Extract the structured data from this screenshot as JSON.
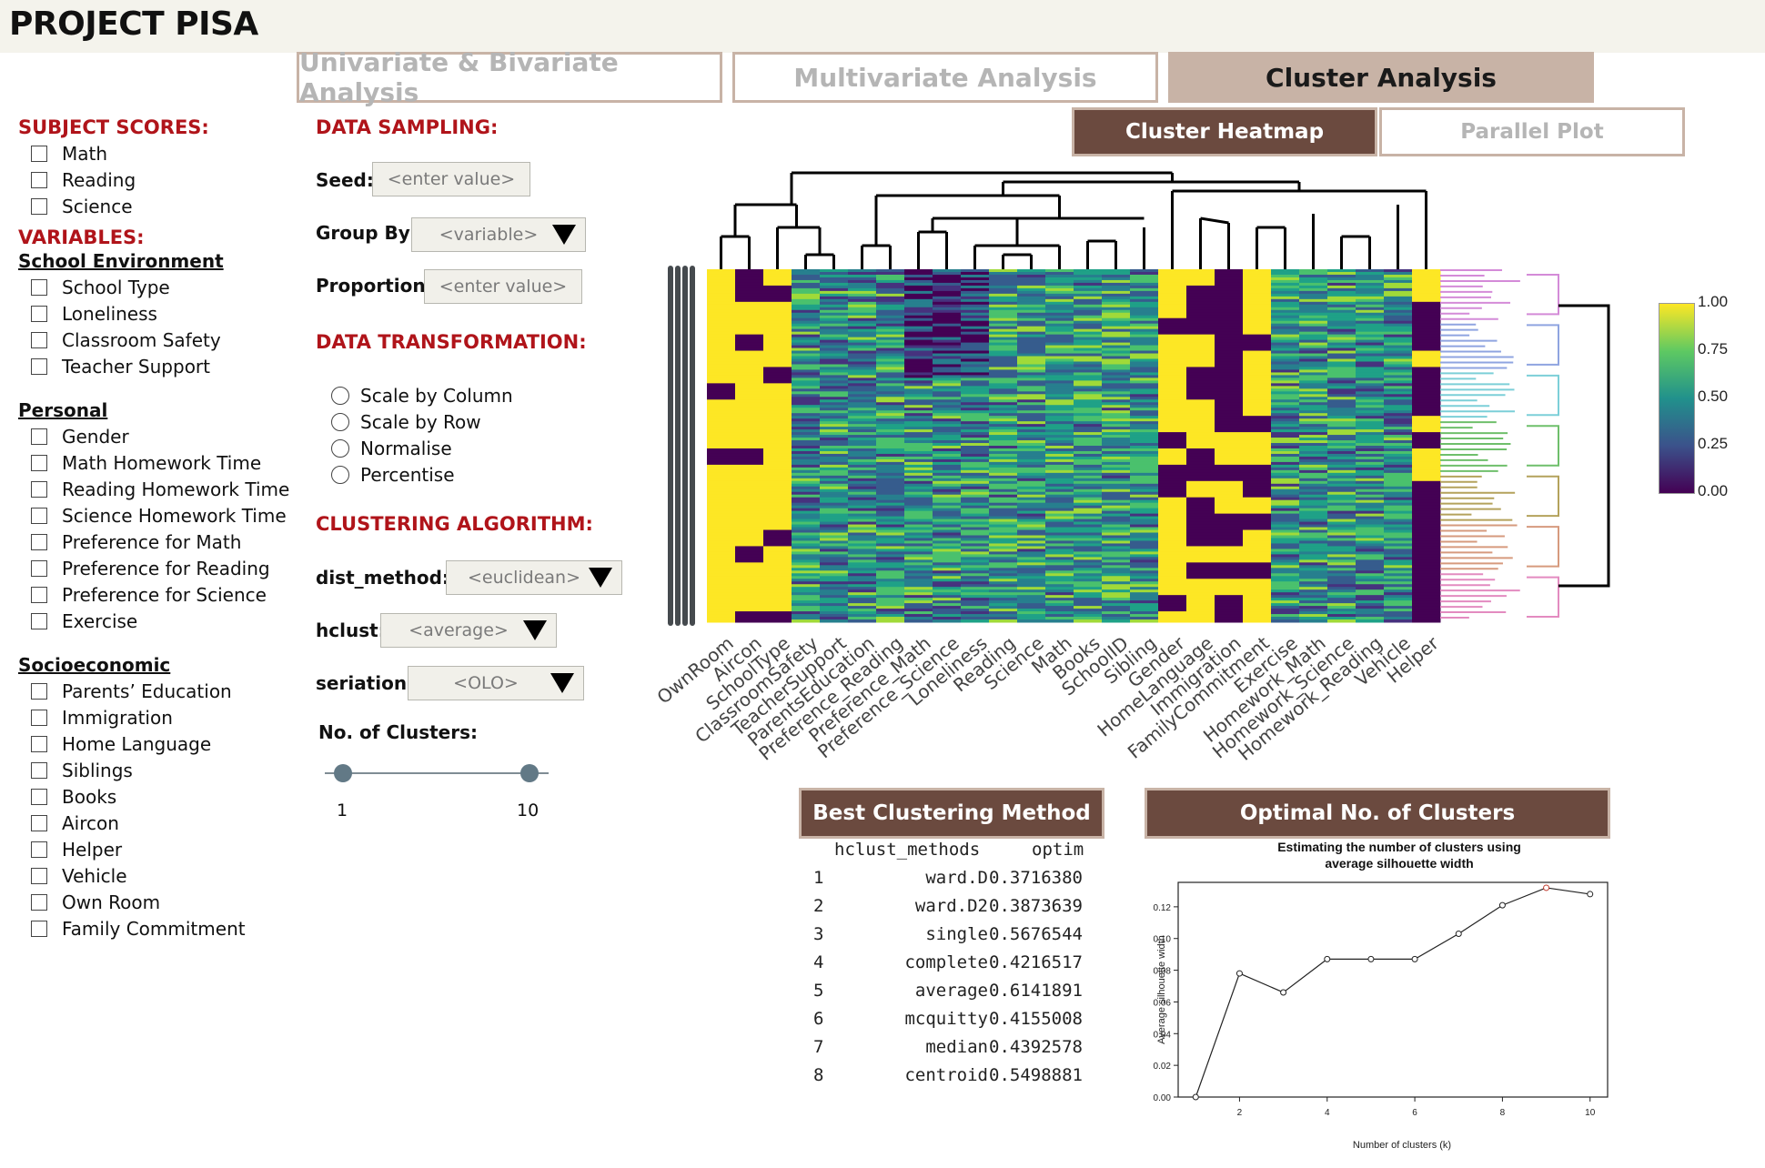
{
  "app": {
    "title": "PROJECT PISA"
  },
  "main_tabs": [
    {
      "label": "Univariate & Bivariate Analysis",
      "active": false
    },
    {
      "label": "Multivariate Analysis",
      "active": false
    },
    {
      "label": "Cluster Analysis",
      "active": true
    }
  ],
  "sub_tabs": [
    {
      "label": "Cluster Heatmap",
      "active": true
    },
    {
      "label": "Parallel Plot",
      "active": false
    }
  ],
  "sidebar": {
    "subject_scores_title": "SUBJECT SCORES:",
    "subject_scores": [
      "Math",
      "Reading",
      "Science"
    ],
    "variables_title": "VARIABLES:",
    "school_env_title": "School Environment",
    "school_env": [
      "School Type",
      "Loneliness",
      "Classroom Safety",
      "Teacher Support"
    ],
    "personal_title": "Personal",
    "personal": [
      "Gender",
      "Math Homework Time",
      "Reading Homework Time",
      "Science Homework Time",
      "Preference for Math",
      "Preference for Reading",
      "Preference for Science",
      "Exercise"
    ],
    "socio_title": "Socioeconomic",
    "socio": [
      "Parents’ Education",
      "Immigration",
      "Home Language",
      "Siblings",
      "Books",
      "Aircon",
      "Helper",
      "Vehicle",
      "Own Room",
      "Family Commitment"
    ]
  },
  "controls": {
    "sampling_title": "DATA SAMPLING:",
    "seed_label": "Seed:",
    "seed_placeholder": "<enter value>",
    "group_by_label": "Group By:",
    "group_by_value": "<variable>",
    "proportion_label": "Proportion:",
    "proportion_placeholder": "<enter value>",
    "transform_title": "DATA TRANSFORMATION:",
    "transform_options": [
      "Scale by Column",
      "Scale by Row",
      "Normalise",
      "Percentise"
    ],
    "clustering_title": "CLUSTERING ALGORITHM:",
    "dist_label": "dist_method:",
    "dist_value": "<euclidean>",
    "hclust_label": "hclust:",
    "hclust_value": "<average>",
    "seriation_label": "seriation:",
    "seriation_value": "<OLO>",
    "clusters_label": "No. of Clusters:",
    "clusters_min": "1",
    "clusters_max": "10"
  },
  "heatmap": {
    "columns": [
      "OwnRoom",
      "Aircon",
      "SchoolType",
      "ClassroomSafety",
      "TeacherSupport",
      "ParentsEducation",
      "Preference_Reading",
      "Preference_Math",
      "Preference_Science",
      "Loneliness",
      "Reading",
      "Science",
      "Math",
      "Books",
      "SchoolID",
      "Sibling",
      "Gender",
      "HomeLanguage",
      "Immigration",
      "FamilyCommitment",
      "Exercise",
      "Homework_Math",
      "Homework_Science",
      "Homework_Reading",
      "Vehicle",
      "Helper"
    ],
    "legend_ticks": [
      "1.00",
      "0.75",
      "0.50",
      "0.25",
      "0.00"
    ],
    "colors": {
      "low": "#440154",
      "mid": "#21918c",
      "high": "#fde725"
    }
  },
  "best_method": {
    "title": "Best Clustering Method",
    "header": [
      "hclust_methods",
      "optim"
    ],
    "rows": [
      {
        "idx": "1",
        "method": "ward.D",
        "optim": "0.3716380"
      },
      {
        "idx": "2",
        "method": "ward.D2",
        "optim": "0.3873639"
      },
      {
        "idx": "3",
        "method": "single",
        "optim": "0.5676544"
      },
      {
        "idx": "4",
        "method": "complete",
        "optim": "0.4216517"
      },
      {
        "idx": "5",
        "method": "average",
        "optim": "0.6141891"
      },
      {
        "idx": "6",
        "method": "mcquitty",
        "optim": "0.4155008"
      },
      {
        "idx": "7",
        "method": "median",
        "optim": "0.4392578"
      },
      {
        "idx": "8",
        "method": "centroid",
        "optim": "0.5498881"
      }
    ]
  },
  "optimal_clusters": {
    "panel_title": "Optimal No. of Clusters"
  },
  "chart_data": {
    "type": "line",
    "title": "Estimating the number of clusters using\naverage silhouette width",
    "title_lines": [
      "Estimating the number of clusters using",
      "average silhouette width"
    ],
    "xlabel": "Number of clusters (k)",
    "ylabel": "Average silhouette width",
    "x": [
      1,
      2,
      3,
      4,
      5,
      6,
      7,
      8,
      9,
      10
    ],
    "values": [
      0.0,
      0.078,
      0.066,
      0.087,
      0.087,
      0.087,
      0.103,
      0.121,
      0.132,
      0.128
    ],
    "xticks": [
      "2",
      "4",
      "6",
      "8",
      "10"
    ],
    "yticks": [
      "0.00",
      "0.02",
      "0.04",
      "0.06",
      "0.08",
      "0.10",
      "0.12"
    ],
    "xlim": [
      1,
      10
    ],
    "ylim": [
      0,
      0.13
    ]
  }
}
